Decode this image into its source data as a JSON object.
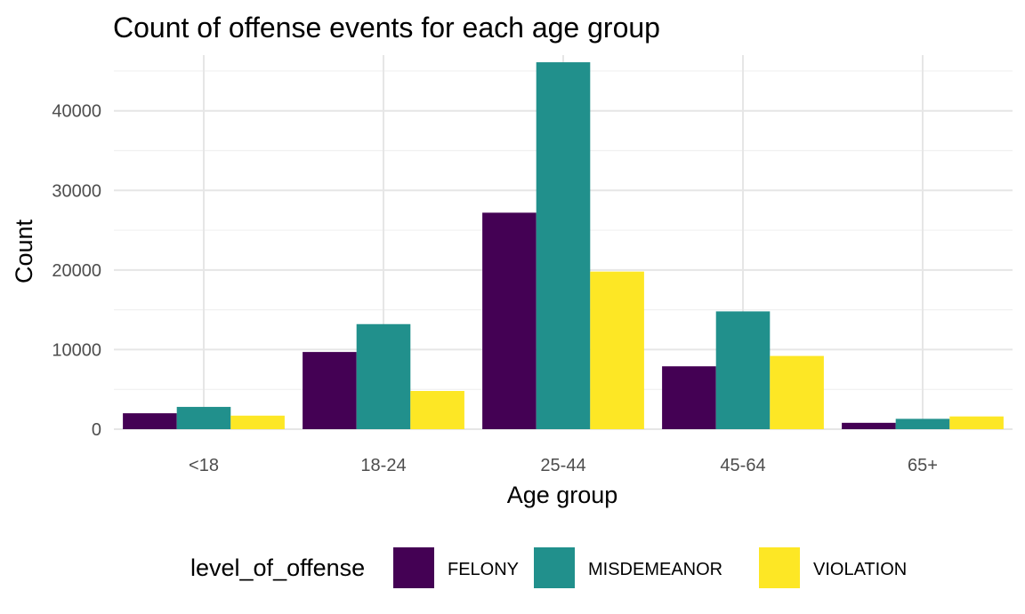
{
  "chart_data": {
    "type": "bar",
    "title": "Count of offense events for each age group",
    "xlabel": "Age group",
    "ylabel": "Count",
    "categories": [
      "<18",
      "18-24",
      "25-44",
      "45-64",
      "65+"
    ],
    "series": [
      {
        "name": "FELONY",
        "color": "#440154",
        "values": [
          2000,
          9700,
          27200,
          7900,
          800
        ]
      },
      {
        "name": "MISDEMEANOR",
        "color": "#21908C",
        "values": [
          2800,
          13200,
          46100,
          14800,
          1300
        ]
      },
      {
        "name": "VIOLATION",
        "color": "#FDE725",
        "values": [
          1700,
          4800,
          19800,
          9200,
          1600
        ]
      }
    ],
    "ylim": [
      0,
      47000
    ],
    "yticks": [
      0,
      10000,
      20000,
      30000,
      40000
    ],
    "grid": true,
    "legend": {
      "title": "level_of_offense",
      "position": "bottom"
    }
  }
}
